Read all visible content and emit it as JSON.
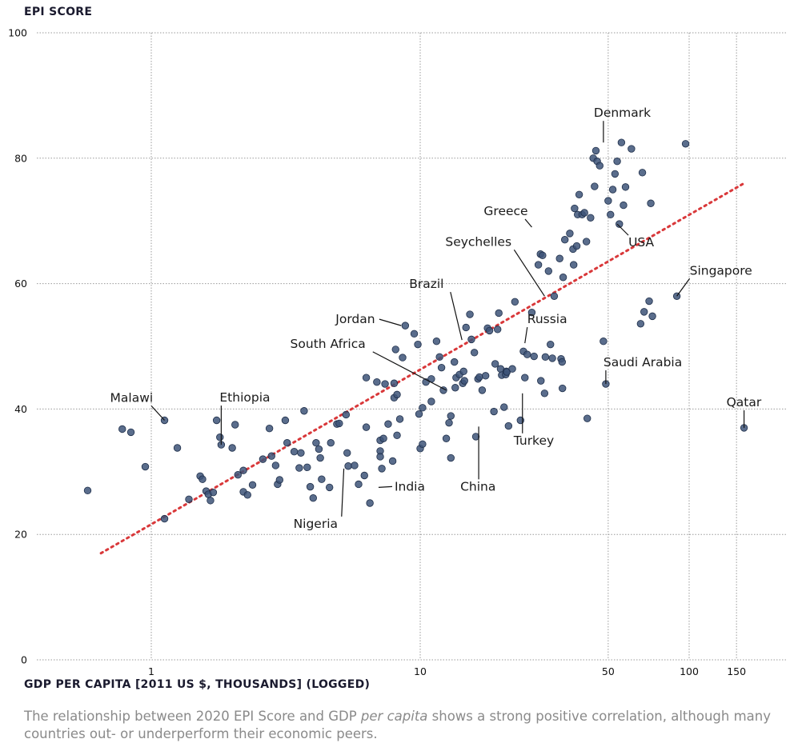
{
  "chart_data": {
    "type": "scatter",
    "ylabel": "EPI SCORE",
    "xlabel": "GDP PER CAPITA [2011 US $, THOUSANDS] (LOGGED)",
    "x_scale": "log",
    "xlim": [
      0.4,
      200
    ],
    "ylim": [
      0,
      100
    ],
    "x_ticks": [
      1,
      10,
      50,
      100,
      150
    ],
    "y_ticks": [
      0,
      20,
      40,
      60,
      80,
      100
    ],
    "grid": true,
    "caption": {
      "before": "The relationship between 2020 EPI Score and GDP ",
      "emphasis": "per capita",
      "after": " shows a strong positive correlation, although many countries out- or underperform their economic peers."
    },
    "point_color": "#3d5478",
    "trend_color": "#d9383a",
    "trend_line": {
      "x": [
        0.65,
        160
      ],
      "y": [
        17,
        76
      ]
    },
    "labeled_points": [
      {
        "name": "Denmark",
        "x": 48,
        "y": 82.5,
        "label_dx": -12,
        "label_dy": -32,
        "anchor": "start"
      },
      {
        "name": "Greece",
        "x": 26,
        "y": 69,
        "label_dx": -60,
        "label_dy": -15,
        "anchor": "start"
      },
      {
        "name": "Seychelles",
        "x": 29,
        "y": 58,
        "label_dx": -124,
        "label_dy": -63,
        "anchor": "start"
      },
      {
        "name": "USA",
        "x": 54,
        "y": 69.5,
        "label_dx": 14,
        "label_dy": 28,
        "anchor": "start"
      },
      {
        "name": "Singapore",
        "x": 90,
        "y": 58,
        "label_dx": 16,
        "label_dy": -27,
        "anchor": "start"
      },
      {
        "name": "Brazil",
        "x": 14.3,
        "y": 51,
        "label_dx": -66,
        "label_dy": -65,
        "anchor": "start"
      },
      {
        "name": "Jordan",
        "x": 8.5,
        "y": 53.3,
        "label_dx": -82,
        "label_dy": -3,
        "anchor": "start"
      },
      {
        "name": "Russia",
        "x": 24.5,
        "y": 50.5,
        "label_dx": 3,
        "label_dy": -25,
        "anchor": "start"
      },
      {
        "name": "South Africa",
        "x": 12.5,
        "y": 43,
        "label_dx": -195,
        "label_dy": -53,
        "anchor": "start"
      },
      {
        "name": "Saudi Arabia",
        "x": 49,
        "y": 44,
        "label_dx": -3,
        "label_dy": -22,
        "anchor": "start"
      },
      {
        "name": "Malawi",
        "x": 1.12,
        "y": 38.2,
        "label_dx": -68,
        "label_dy": -23,
        "anchor": "start"
      },
      {
        "name": "Ethiopia",
        "x": 1.82,
        "y": 34.3,
        "label_dx": -2,
        "label_dy": -54,
        "anchor": "start"
      },
      {
        "name": "Qatar",
        "x": 160,
        "y": 37,
        "label_dx": -22,
        "label_dy": -27,
        "anchor": "start"
      },
      {
        "name": "Turkey",
        "x": 24,
        "y": 42.5,
        "label_dx": -11,
        "label_dy": 64,
        "anchor": "start"
      },
      {
        "name": "China",
        "x": 16.5,
        "y": 37.2,
        "label_dx": -23,
        "label_dy": 80,
        "anchor": "start"
      },
      {
        "name": "India",
        "x": 7,
        "y": 27.5,
        "label_dx": 20,
        "label_dy": 4,
        "anchor": "start"
      },
      {
        "name": "Nigeria",
        "x": 5.2,
        "y": 30.5,
        "label_dx": -63,
        "label_dy": 74,
        "anchor": "start"
      }
    ],
    "points": [
      [
        0.58,
        27
      ],
      [
        0.78,
        36.8
      ],
      [
        0.84,
        36.3
      ],
      [
        0.95,
        30.8
      ],
      [
        1.12,
        38.2
      ],
      [
        1.12,
        22.5
      ],
      [
        1.25,
        33.8
      ],
      [
        1.38,
        25.6
      ],
      [
        1.52,
        29.3
      ],
      [
        1.55,
        28.8
      ],
      [
        1.6,
        26.9
      ],
      [
        1.63,
        26.4
      ],
      [
        1.66,
        25.4
      ],
      [
        1.7,
        26.7
      ],
      [
        1.75,
        38.2
      ],
      [
        1.8,
        35.5
      ],
      [
        1.82,
        34.3
      ],
      [
        2.0,
        33.8
      ],
      [
        2.05,
        37.5
      ],
      [
        2.1,
        29.5
      ],
      [
        2.2,
        30.2
      ],
      [
        2.2,
        26.8
      ],
      [
        2.28,
        26.3
      ],
      [
        2.38,
        27.9
      ],
      [
        2.6,
        32.0
      ],
      [
        2.75,
        36.9
      ],
      [
        2.8,
        32.5
      ],
      [
        2.9,
        31.0
      ],
      [
        2.95,
        28.0
      ],
      [
        3.0,
        28.7
      ],
      [
        3.15,
        38.2
      ],
      [
        3.2,
        34.6
      ],
      [
        3.4,
        33.2
      ],
      [
        3.55,
        30.6
      ],
      [
        3.6,
        33.0
      ],
      [
        3.7,
        39.7
      ],
      [
        3.8,
        30.7
      ],
      [
        3.9,
        27.6
      ],
      [
        4.0,
        25.8
      ],
      [
        4.1,
        34.6
      ],
      [
        4.2,
        33.6
      ],
      [
        4.25,
        32.2
      ],
      [
        4.3,
        28.8
      ],
      [
        4.6,
        27.5
      ],
      [
        4.65,
        34.6
      ],
      [
        4.9,
        37.6
      ],
      [
        5.0,
        37.7
      ],
      [
        5.3,
        39.1
      ],
      [
        5.35,
        33.0
      ],
      [
        5.4,
        30.9
      ],
      [
        5.7,
        31.0
      ],
      [
        5.9,
        28.0
      ],
      [
        6.2,
        29.4
      ],
      [
        6.3,
        37.1
      ],
      [
        6.3,
        45.0
      ],
      [
        6.5,
        25.0
      ],
      [
        6.9,
        44.3
      ],
      [
        7.1,
        35.0
      ],
      [
        7.1,
        33.3
      ],
      [
        7.1,
        32.4
      ],
      [
        7.2,
        30.5
      ],
      [
        7.3,
        35.3
      ],
      [
        7.4,
        44.0
      ],
      [
        7.6,
        37.6
      ],
      [
        7.9,
        31.7
      ],
      [
        8.0,
        41.8
      ],
      [
        8.0,
        44.1
      ],
      [
        8.1,
        49.5
      ],
      [
        8.2,
        42.3
      ],
      [
        8.2,
        35.8
      ],
      [
        8.4,
        38.4
      ],
      [
        8.6,
        48.2
      ],
      [
        8.8,
        53.3
      ],
      [
        9.5,
        52.0
      ],
      [
        9.8,
        50.3
      ],
      [
        9.9,
        39.2
      ],
      [
        10.0,
        33.7
      ],
      [
        10.2,
        34.4
      ],
      [
        10.2,
        40.2
      ],
      [
        10.5,
        44.3
      ],
      [
        11.0,
        44.8
      ],
      [
        11.0,
        41.2
      ],
      [
        11.5,
        50.8
      ],
      [
        11.8,
        48.3
      ],
      [
        12.0,
        46.6
      ],
      [
        12.2,
        43.0
      ],
      [
        12.5,
        35.3
      ],
      [
        12.8,
        37.8
      ],
      [
        13.0,
        38.9
      ],
      [
        13.0,
        32.2
      ],
      [
        13.4,
        47.5
      ],
      [
        13.5,
        43.4
      ],
      [
        13.6,
        45.0
      ],
      [
        14.0,
        45.5
      ],
      [
        14.4,
        44.1
      ],
      [
        14.5,
        46.0
      ],
      [
        14.6,
        44.5
      ],
      [
        14.8,
        53.0
      ],
      [
        15.3,
        55.1
      ],
      [
        15.5,
        51.1
      ],
      [
        15.9,
        49.0
      ],
      [
        16.1,
        35.6
      ],
      [
        16.4,
        44.8
      ],
      [
        16.6,
        45.1
      ],
      [
        17.0,
        43.0
      ],
      [
        17.5,
        45.3
      ],
      [
        17.8,
        52.9
      ],
      [
        18.1,
        52.5
      ],
      [
        18.8,
        39.6
      ],
      [
        19.0,
        47.2
      ],
      [
        19.4,
        52.7
      ],
      [
        19.6,
        55.3
      ],
      [
        19.9,
        46.4
      ],
      [
        20.1,
        45.4
      ],
      [
        20.5,
        40.3
      ],
      [
        20.8,
        45.5
      ],
      [
        20.9,
        46.0
      ],
      [
        21.0,
        45.9
      ],
      [
        21.3,
        37.3
      ],
      [
        22.0,
        46.4
      ],
      [
        22.5,
        57.1
      ],
      [
        23.6,
        38.2
      ],
      [
        24.2,
        49.2
      ],
      [
        24.5,
        45.0
      ],
      [
        25.0,
        48.7
      ],
      [
        26.0,
        55.4
      ],
      [
        26.5,
        48.4
      ],
      [
        27.5,
        63.0
      ],
      [
        28.0,
        64.7
      ],
      [
        28.1,
        44.5
      ],
      [
        28.5,
        64.5
      ],
      [
        29.0,
        42.5
      ],
      [
        29.2,
        48.3
      ],
      [
        30.0,
        62.0
      ],
      [
        30.5,
        50.3
      ],
      [
        31.0,
        48.1
      ],
      [
        31.5,
        58.0
      ],
      [
        33.0,
        64.0
      ],
      [
        33.4,
        48.0
      ],
      [
        33.7,
        47.5
      ],
      [
        33.8,
        43.3
      ],
      [
        34.0,
        61.0
      ],
      [
        34.5,
        67.0
      ],
      [
        36.0,
        68.0
      ],
      [
        37.0,
        65.5
      ],
      [
        37.2,
        63.0
      ],
      [
        37.5,
        72.0
      ],
      [
        38.2,
        66.0
      ],
      [
        38.5,
        71.0
      ],
      [
        39.0,
        74.2
      ],
      [
        40.0,
        71.0
      ],
      [
        40.8,
        71.3
      ],
      [
        41.5,
        66.7
      ],
      [
        41.8,
        38.5
      ],
      [
        43.0,
        70.5
      ],
      [
        44.0,
        80.0
      ],
      [
        44.5,
        75.5
      ],
      [
        45.0,
        81.2
      ],
      [
        45.5,
        79.5
      ],
      [
        46.5,
        78.8
      ],
      [
        48.0,
        50.8
      ],
      [
        49.0,
        44.0
      ],
      [
        50.0,
        73.2
      ],
      [
        51.0,
        71.0
      ],
      [
        52.0,
        75.0
      ],
      [
        53.0,
        77.5
      ],
      [
        54.0,
        79.5
      ],
      [
        55.0,
        69.5
      ],
      [
        56.0,
        82.5
      ],
      [
        57.0,
        72.5
      ],
      [
        58.0,
        75.4
      ],
      [
        61.0,
        81.5
      ],
      [
        66.0,
        53.6
      ],
      [
        67.0,
        77.7
      ],
      [
        68.0,
        55.5
      ],
      [
        71.0,
        57.2
      ],
      [
        72.0,
        72.8
      ],
      [
        73.0,
        54.8
      ],
      [
        90.0,
        58.0
      ],
      [
        97.0,
        82.3
      ],
      [
        160.0,
        37.0
      ]
    ]
  }
}
